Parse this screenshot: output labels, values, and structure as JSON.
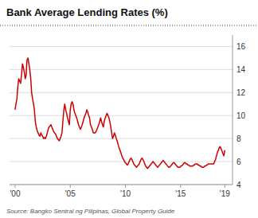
{
  "chart_data": {
    "type": "line",
    "title": "Bank Average Lending Rates (%)",
    "annotations": [
      "Source: Bangko Sentral ng Pilipinas, Global Property Guide"
    ],
    "color": "#cc0000",
    "grid": true,
    "xlim": [
      1999.5,
      2019.7
    ],
    "xticks": [
      {
        "value": 2000,
        "label": "'00"
      },
      {
        "value": 2005,
        "label": "'05"
      },
      {
        "value": 2010,
        "label": "'10"
      },
      {
        "value": 2015,
        "label": "'15"
      },
      {
        "value": 2019,
        "label": "'19"
      }
    ],
    "ylim": [
      4,
      17
    ],
    "yticks": [
      4,
      6,
      8,
      10,
      12,
      14,
      16
    ],
    "x": [
      2000.0,
      2000.08,
      2000.17,
      2000.25,
      2000.33,
      2000.42,
      2000.5,
      2000.58,
      2000.67,
      2000.75,
      2000.83,
      2000.92,
      2001.0,
      2001.08,
      2001.17,
      2001.25,
      2001.33,
      2001.42,
      2001.5,
      2001.58,
      2001.67,
      2001.75,
      2001.83,
      2001.92,
      2002.0,
      2002.08,
      2002.17,
      2002.25,
      2002.33,
      2002.42,
      2002.5,
      2002.58,
      2002.67,
      2002.75,
      2002.83,
      2002.92,
      2003.0,
      2003.08,
      2003.17,
      2003.25,
      2003.33,
      2003.42,
      2003.5,
      2003.58,
      2003.67,
      2003.75,
      2003.83,
      2003.92,
      2004.0,
      2004.08,
      2004.17,
      2004.25,
      2004.33,
      2004.42,
      2004.5,
      2004.58,
      2004.67,
      2004.75,
      2004.83,
      2004.92,
      2005.0,
      2005.08,
      2005.17,
      2005.25,
      2005.33,
      2005.42,
      2005.5,
      2005.58,
      2005.67,
      2005.75,
      2005.83,
      2005.92,
      2006.0,
      2006.08,
      2006.17,
      2006.25,
      2006.33,
      2006.42,
      2006.5,
      2006.58,
      2006.67,
      2006.75,
      2006.83,
      2006.92,
      2007.0,
      2007.08,
      2007.17,
      2007.25,
      2007.33,
      2007.42,
      2007.5,
      2007.58,
      2007.67,
      2007.75,
      2007.83,
      2007.92,
      2008.0,
      2008.08,
      2008.17,
      2008.25,
      2008.33,
      2008.42,
      2008.5,
      2008.58,
      2008.67,
      2008.75,
      2008.83,
      2008.92,
      2009.0,
      2009.08,
      2009.17,
      2009.25,
      2009.33,
      2009.42,
      2009.5,
      2009.58,
      2009.67,
      2009.75,
      2009.83,
      2009.92,
      2010.0,
      2010.08,
      2010.17,
      2010.25,
      2010.33,
      2010.42,
      2010.5,
      2010.58,
      2010.67,
      2010.75,
      2010.83,
      2010.92,
      2011.0,
      2011.08,
      2011.17,
      2011.25,
      2011.33,
      2011.42,
      2011.5,
      2011.58,
      2011.67,
      2011.75,
      2011.83,
      2011.92,
      2012.0,
      2012.08,
      2012.17,
      2012.25,
      2012.33,
      2012.42,
      2012.5,
      2012.58,
      2012.67,
      2012.75,
      2012.83,
      2012.92,
      2013.0,
      2013.08,
      2013.17,
      2013.25,
      2013.33,
      2013.42,
      2013.5,
      2013.58,
      2013.67,
      2013.75,
      2013.83,
      2013.92,
      2014.0,
      2014.08,
      2014.17,
      2014.25,
      2014.33,
      2014.42,
      2014.5,
      2014.58,
      2014.67,
      2014.75,
      2014.83,
      2014.92,
      2015.0,
      2015.08,
      2015.17,
      2015.25,
      2015.33,
      2015.42,
      2015.5,
      2015.58,
      2015.67,
      2015.75,
      2015.83,
      2015.92,
      2016.0,
      2016.08,
      2016.17,
      2016.25,
      2016.33,
      2016.42,
      2016.5,
      2016.58,
      2016.67,
      2016.75,
      2016.83,
      2016.92,
      2017.0,
      2017.08,
      2017.17,
      2017.25,
      2017.33,
      2017.42,
      2017.5,
      2017.58,
      2017.67,
      2017.75,
      2017.83,
      2017.92,
      2018.0,
      2018.08,
      2018.17,
      2018.25,
      2018.33,
      2018.42,
      2018.5,
      2018.58,
      2018.67,
      2018.75,
      2018.83,
      2018.92,
      2019.0
    ],
    "values": [
      10.5,
      11.0,
      11.5,
      12.5,
      13.2,
      13.0,
      12.8,
      13.5,
      14.5,
      14.2,
      13.8,
      13.2,
      13.5,
      14.8,
      15.0,
      14.5,
      14.0,
      13.2,
      12.0,
      11.5,
      11.0,
      10.5,
      9.5,
      9.0,
      8.7,
      8.5,
      8.3,
      8.2,
      8.5,
      8.3,
      8.2,
      8.0,
      8.1,
      8.0,
      8.2,
      8.5,
      8.8,
      9.0,
      9.1,
      9.2,
      9.0,
      8.8,
      8.6,
      8.5,
      8.4,
      8.2,
      8.0,
      7.9,
      7.8,
      8.0,
      8.2,
      8.5,
      9.5,
      10.5,
      11.0,
      10.5,
      10.2,
      9.8,
      9.5,
      9.2,
      10.5,
      11.0,
      11.2,
      11.0,
      10.5,
      10.2,
      10.0,
      9.8,
      9.5,
      9.2,
      9.0,
      8.8,
      9.0,
      9.2,
      9.5,
      9.8,
      10.0,
      10.2,
      10.5,
      10.3,
      10.0,
      9.8,
      9.2,
      9.0,
      8.8,
      8.5,
      8.5,
      8.5,
      8.6,
      8.8,
      9.0,
      9.2,
      9.5,
      9.8,
      9.5,
      9.2,
      9.0,
      9.5,
      9.8,
      10.0,
      10.2,
      10.0,
      9.8,
      9.5,
      9.0,
      8.5,
      8.0,
      8.2,
      8.5,
      8.3,
      8.0,
      7.8,
      7.5,
      7.2,
      7.0,
      6.8,
      6.5,
      6.3,
      6.2,
      6.0,
      5.9,
      5.8,
      5.7,
      5.8,
      6.0,
      6.2,
      6.3,
      6.2,
      6.0,
      5.8,
      5.7,
      5.6,
      5.5,
      5.6,
      5.7,
      5.8,
      6.0,
      6.2,
      6.3,
      6.2,
      6.0,
      5.8,
      5.6,
      5.5,
      5.4,
      5.5,
      5.6,
      5.7,
      5.8,
      5.9,
      6.0,
      5.9,
      5.8,
      5.7,
      5.6,
      5.5,
      5.6,
      5.7,
      5.8,
      5.9,
      6.0,
      6.1,
      6.0,
      5.9,
      5.8,
      5.7,
      5.6,
      5.5,
      5.5,
      5.6,
      5.7,
      5.8,
      5.9,
      5.9,
      5.8,
      5.7,
      5.6,
      5.5,
      5.5,
      5.5,
      5.6,
      5.6,
      5.7,
      5.8,
      5.9,
      5.9,
      5.8,
      5.8,
      5.7,
      5.7,
      5.6,
      5.6,
      5.6,
      5.6,
      5.7,
      5.7,
      5.8,
      5.8,
      5.8,
      5.7,
      5.7,
      5.6,
      5.6,
      5.5,
      5.5,
      5.5,
      5.6,
      5.6,
      5.7,
      5.7,
      5.8,
      5.8,
      5.8,
      5.8,
      5.8,
      5.8,
      5.8,
      6.0,
      6.2,
      6.5,
      6.8,
      7.0,
      7.2,
      7.3,
      7.1,
      6.9,
      6.7,
      6.5,
      7.0
    ]
  }
}
